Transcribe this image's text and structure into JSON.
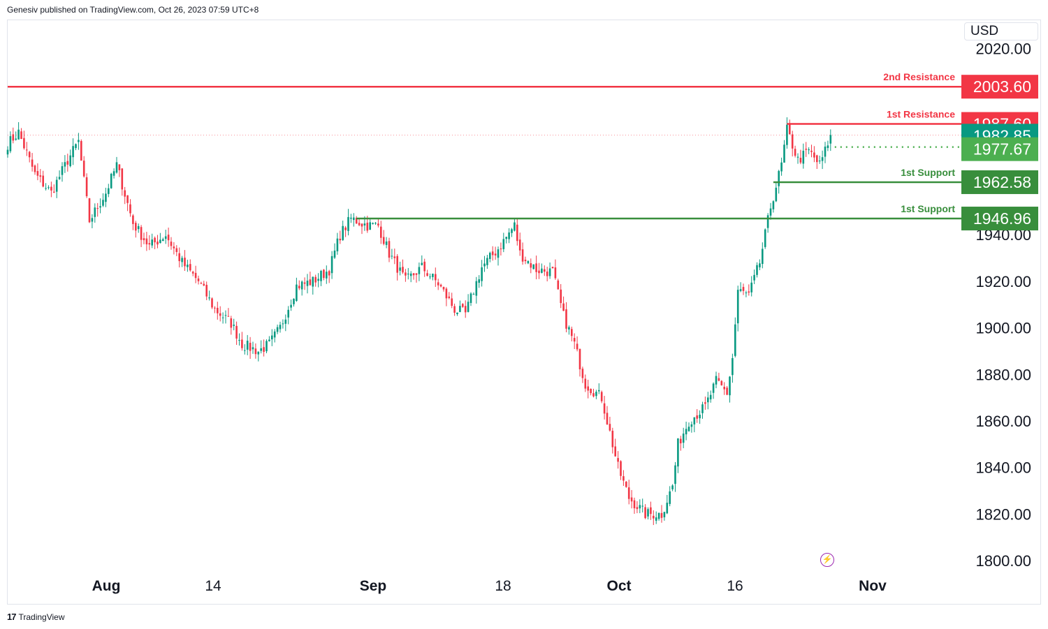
{
  "header": {
    "published": "Genesiv published on TradingView.com, Oct 26, 2023 07:59 UTC+8"
  },
  "footer": {
    "brand": "TradingView",
    "logo": "17"
  },
  "currency": "USD",
  "colors": {
    "up": "#089981",
    "down": "#f23645",
    "resistance": "#f23645",
    "support": "#388e3c",
    "last": "#089981",
    "dotted": "#4caf50"
  },
  "icons": {
    "events": "lightning-icon"
  },
  "chart_data": {
    "type": "candlestick",
    "symbol_currency": "USD",
    "ylim": [
      1800,
      2020
    ],
    "y_ticks": [
      "2020.00",
      "1940.00",
      "1920.00",
      "1900.00",
      "1880.00",
      "1860.00",
      "1840.00",
      "1820.00",
      "1800.00"
    ],
    "x_ticks": [
      {
        "label": "Aug",
        "bold": true
      },
      {
        "label": "14",
        "bold": false
      },
      {
        "label": "Sep",
        "bold": true
      },
      {
        "label": "18",
        "bold": false
      },
      {
        "label": "Oct",
        "bold": true
      },
      {
        "label": "16",
        "bold": false
      },
      {
        "label": "Nov",
        "bold": true
      }
    ],
    "levels": [
      {
        "name": "2nd Resistance",
        "value": 2003.6,
        "label": "2003.60",
        "kind": "resistance"
      },
      {
        "name": "1st Resistance",
        "value": 1987.6,
        "label": "1987.60",
        "kind": "resistance"
      },
      {
        "name": "1st Support",
        "value": 1962.58,
        "label": "1962.58",
        "kind": "support"
      },
      {
        "name": "1st Support",
        "value": 1946.96,
        "label": "1946.96",
        "kind": "support"
      }
    ],
    "last_price": {
      "value": 1982.85,
      "label": "1982.85"
    },
    "prev_close": {
      "value": 1977.67,
      "label": "1977.67"
    },
    "price_path": [
      {
        "x": 0,
        "p": 1979
      },
      {
        "x": 4,
        "p": 1984
      },
      {
        "x": 10,
        "p": 1966
      },
      {
        "x": 16,
        "p": 1958
      },
      {
        "x": 22,
        "p": 1972
      },
      {
        "x": 26,
        "p": 1980
      },
      {
        "x": 30,
        "p": 1946
      },
      {
        "x": 36,
        "p": 1958
      },
      {
        "x": 40,
        "p": 1970
      },
      {
        "x": 46,
        "p": 1945
      },
      {
        "x": 52,
        "p": 1935
      },
      {
        "x": 58,
        "p": 1940
      },
      {
        "x": 64,
        "p": 1928
      },
      {
        "x": 70,
        "p": 1920
      },
      {
        "x": 76,
        "p": 1908
      },
      {
        "x": 82,
        "p": 1902
      },
      {
        "x": 86,
        "p": 1893
      },
      {
        "x": 92,
        "p": 1890
      },
      {
        "x": 96,
        "p": 1893
      },
      {
        "x": 100,
        "p": 1900
      },
      {
        "x": 106,
        "p": 1918
      },
      {
        "x": 112,
        "p": 1920
      },
      {
        "x": 118,
        "p": 1925
      },
      {
        "x": 122,
        "p": 1940
      },
      {
        "x": 126,
        "p": 1947
      },
      {
        "x": 132,
        "p": 1944
      },
      {
        "x": 136,
        "p": 1944
      },
      {
        "x": 140,
        "p": 1932
      },
      {
        "x": 146,
        "p": 1920
      },
      {
        "x": 152,
        "p": 1926
      },
      {
        "x": 158,
        "p": 1919
      },
      {
        "x": 164,
        "p": 1908
      },
      {
        "x": 168,
        "p": 1906
      },
      {
        "x": 174,
        "p": 1926
      },
      {
        "x": 180,
        "p": 1934
      },
      {
        "x": 186,
        "p": 1944
      },
      {
        "x": 188,
        "p": 1932
      },
      {
        "x": 194,
        "p": 1925
      },
      {
        "x": 200,
        "p": 1924
      },
      {
        "x": 204,
        "p": 1905
      },
      {
        "x": 208,
        "p": 1893
      },
      {
        "x": 212,
        "p": 1876
      },
      {
        "x": 218,
        "p": 1870
      },
      {
        "x": 220,
        "p": 1860
      },
      {
        "x": 224,
        "p": 1840
      },
      {
        "x": 228,
        "p": 1827
      },
      {
        "x": 234,
        "p": 1820
      },
      {
        "x": 240,
        "p": 1820
      },
      {
        "x": 244,
        "p": 1832
      },
      {
        "x": 246,
        "p": 1850
      },
      {
        "x": 250,
        "p": 1860
      },
      {
        "x": 256,
        "p": 1866
      },
      {
        "x": 260,
        "p": 1877
      },
      {
        "x": 264,
        "p": 1872
      },
      {
        "x": 266,
        "p": 1887
      },
      {
        "x": 268,
        "p": 1916
      },
      {
        "x": 272,
        "p": 1914
      },
      {
        "x": 276,
        "p": 1928
      },
      {
        "x": 280,
        "p": 1952
      },
      {
        "x": 284,
        "p": 1970
      },
      {
        "x": 286,
        "p": 1985
      },
      {
        "x": 290,
        "p": 1972
      },
      {
        "x": 294,
        "p": 1976
      },
      {
        "x": 298,
        "p": 1970
      },
      {
        "x": 300,
        "p": 1976
      },
      {
        "x": 302,
        "p": 1983
      }
    ]
  }
}
